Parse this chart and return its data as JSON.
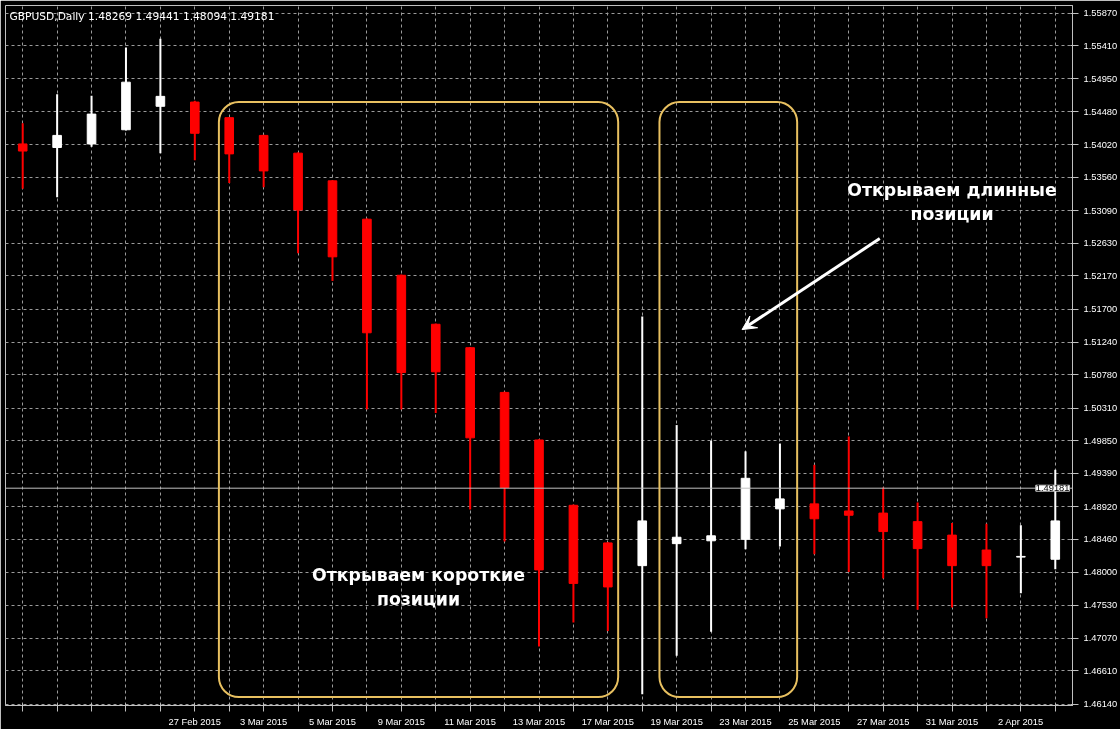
{
  "chart_data": {
    "type": "candlestick",
    "title": "GBPUSD,Daily  1.48269 1.49441 1.48094 1.49181",
    "categories": [
      null,
      null,
      null,
      null,
      null,
      "27 Feb 2015",
      null,
      "3 Mar 2015",
      null,
      "5 Mar 2015",
      null,
      "9 Mar 2015",
      null,
      "11 Mar 2015",
      null,
      "13 Mar 2015",
      null,
      "17 Mar 2015",
      null,
      "19 Mar 2015",
      null,
      "23 Mar 2015",
      null,
      "25 Mar 2015",
      null,
      "27 Mar 2015",
      null,
      "31 Mar 2015",
      null,
      "2 Apr 2015",
      null
    ],
    "ohlc": [
      [
        1.5403,
        1.5432,
        1.534,
        1.5393
      ],
      [
        1.5398,
        1.5473,
        1.5328,
        1.5415
      ],
      [
        1.5403,
        1.5471,
        1.5399,
        1.5445
      ],
      [
        1.5423,
        1.5539,
        1.5422,
        1.549
      ],
      [
        1.5456,
        1.5551,
        1.539,
        1.547
      ],
      [
        1.5462,
        1.5464,
        1.538,
        1.5418
      ],
      [
        1.544,
        1.5441,
        1.5348,
        1.5389
      ],
      [
        1.5415,
        1.5416,
        1.5342,
        1.5365
      ],
      [
        1.539,
        1.5391,
        1.5249,
        1.531
      ],
      [
        1.5351,
        1.5352,
        1.521,
        1.5244
      ],
      [
        1.5297,
        1.5298,
        1.5029,
        1.5137
      ],
      [
        1.5218,
        1.5219,
        1.5029,
        1.5081
      ],
      [
        1.5149,
        1.515,
        1.5024,
        1.5082
      ],
      [
        1.5116,
        1.5117,
        1.4888,
        1.4989
      ],
      [
        1.5053,
        1.5054,
        1.4843,
        1.4919
      ],
      [
        1.4986,
        1.4987,
        1.4695,
        1.4803
      ],
      [
        1.4894,
        1.4895,
        1.4729,
        1.4784
      ],
      [
        1.4841,
        1.4842,
        1.4717,
        1.4779
      ],
      [
        1.4809,
        1.516,
        1.4628,
        1.4872
      ],
      [
        1.484,
        1.5007,
        1.4682,
        1.4849
      ],
      [
        1.4844,
        1.4985,
        1.4716,
        1.4851
      ],
      [
        1.4846,
        1.497,
        1.4832,
        1.4932
      ],
      [
        1.4889,
        1.4981,
        1.4836,
        1.4903
      ],
      [
        1.4896,
        1.4951,
        1.4825,
        1.4875
      ],
      [
        1.4886,
        1.4991,
        1.48,
        1.488
      ],
      [
        1.4883,
        1.4919,
        1.4791,
        1.4857
      ],
      [
        1.4871,
        1.4898,
        1.4747,
        1.4833
      ],
      [
        1.4852,
        1.4869,
        1.475,
        1.4809
      ],
      [
        1.4831,
        1.4868,
        1.4735,
        1.4809
      ],
      [
        1.4821,
        1.4866,
        1.477,
        1.4822
      ],
      [
        1.4818,
        1.4944,
        1.4804,
        1.4872
      ]
    ],
    "colors": [
      "#ff0000",
      "#ffffff",
      "#ffffff",
      "#ffffff",
      "#ffffff",
      "#ff0000",
      "#ff0000",
      "#ff0000",
      "#ff0000",
      "#ff0000",
      "#ff0000",
      "#ff0000",
      "#ff0000",
      "#ff0000",
      "#ff0000",
      "#ff0000",
      "#ff0000",
      "#ff0000",
      "#ffffff",
      "#ffffff",
      "#ffffff",
      "#ffffff",
      "#ffffff",
      "#ff0000",
      "#ff0000",
      "#ff0000",
      "#ff0000",
      "#ff0000",
      "#ff0000",
      "#ffffff",
      "#ffffff"
    ],
    "ylim": [
      1.4612,
      1.5598
    ],
    "yticks": [
      {
        "value": 1.5587,
        "label": "1.55870"
      },
      {
        "value": 1.5541,
        "label": "1.55410"
      },
      {
        "value": 1.5495,
        "label": "1.54950"
      },
      {
        "value": 1.5448,
        "label": "1.54480"
      },
      {
        "value": 1.5402,
        "label": "1.54020"
      },
      {
        "value": 1.5356,
        "label": "1.53560"
      },
      {
        "value": 1.5309,
        "label": "1.53090"
      },
      {
        "value": 1.5263,
        "label": "1.52630"
      },
      {
        "value": 1.5217,
        "label": "1.52170"
      },
      {
        "value": 1.517,
        "label": "1.51700"
      },
      {
        "value": 1.5124,
        "label": "1.51240"
      },
      {
        "value": 1.5078,
        "label": "1.50780"
      },
      {
        "value": 1.5031,
        "label": "1.50310"
      },
      {
        "value": 1.4985,
        "label": "1.49850"
      },
      {
        "value": 1.4939,
        "label": "1.49390"
      },
      {
        "value": 1.4892,
        "label": "1.48920"
      },
      {
        "value": 1.4846,
        "label": "1.48460"
      },
      {
        "value": 1.48,
        "label": "1.48000"
      },
      {
        "value": 1.4753,
        "label": "1.47530"
      },
      {
        "value": 1.4707,
        "label": "1.47070"
      },
      {
        "value": 1.4661,
        "label": "1.46610"
      },
      {
        "value": 1.4614,
        "label": "1.46140"
      }
    ],
    "ref_lines": [
      {
        "axis": "y",
        "value": 1.49181,
        "label": "1.49181",
        "color": "#c0c0c0"
      }
    ],
    "annotations": [
      "Открываем короткие позиции",
      "Открываем длинные позиции"
    ],
    "grid": true
  }
}
